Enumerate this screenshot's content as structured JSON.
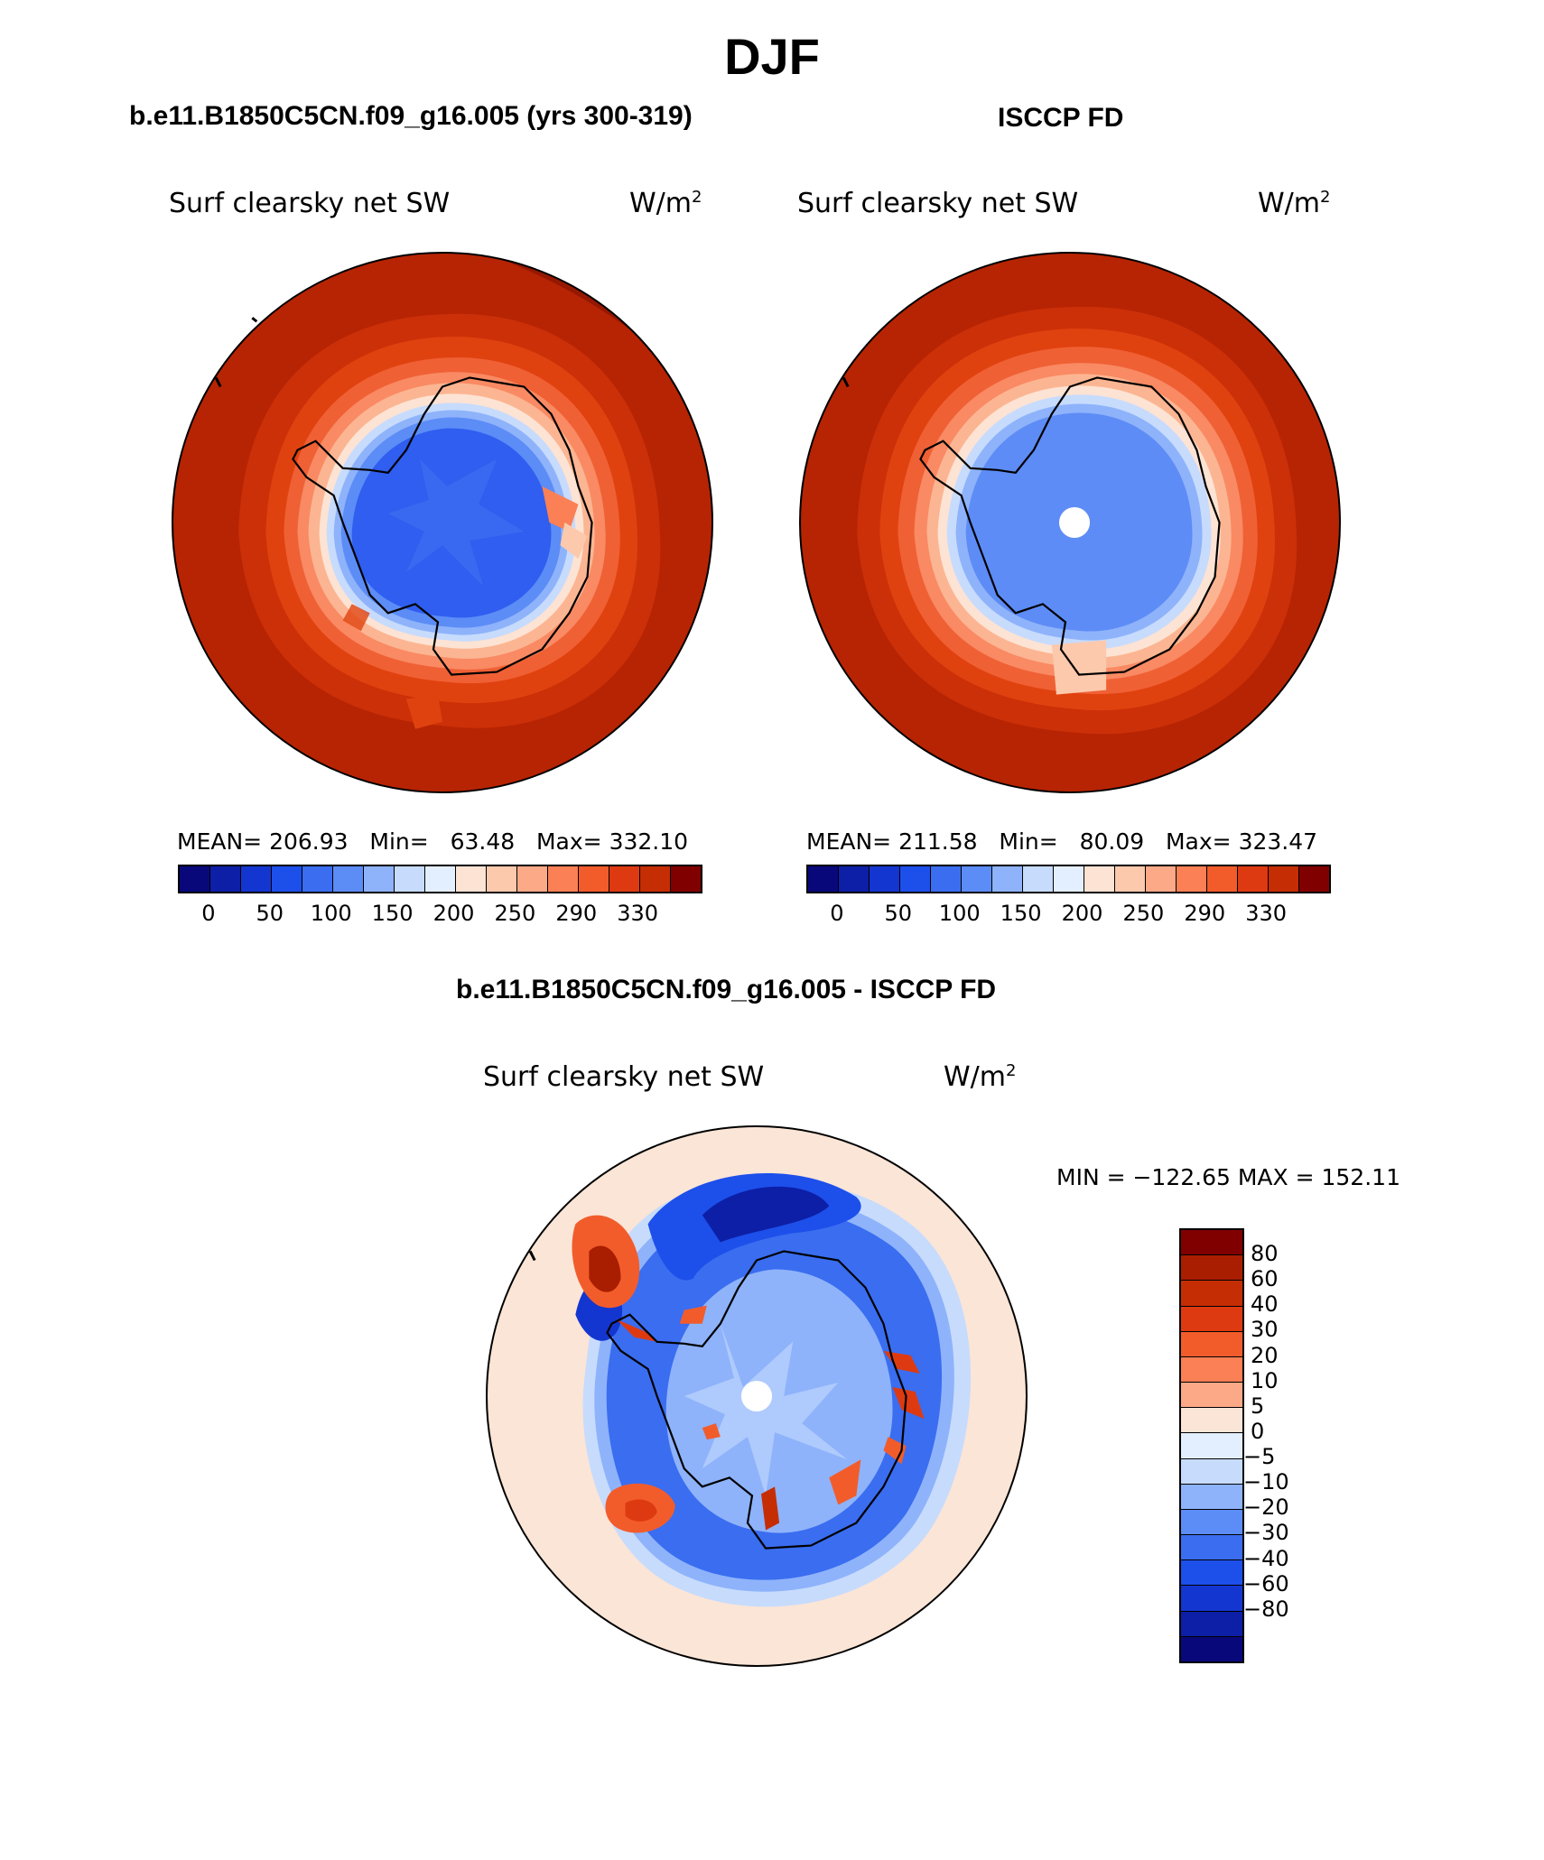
{
  "figure": {
    "title": "DJF"
  },
  "colors": {
    "warm": [
      "#fbe5d6",
      "#fcc9ad",
      "#fca987",
      "#fb8055",
      "#f25c2b",
      "#de3a12",
      "#c52d05",
      "#a91e00",
      "#800000"
    ],
    "cool": [
      "#08087a",
      "#0c1fa6",
      "#1436d0",
      "#1d4fea",
      "#3a6df0",
      "#5c8cf6",
      "#8eb3fb",
      "#c7dbfd",
      "#e3efff"
    ],
    "coast": "#000000",
    "pole_hole": "#ffffff"
  },
  "panels": {
    "model": {
      "header": "b.e11.B1850C5CN.f09_g16.005 (yrs 300-319)",
      "variable": "Surf clearsky net SW",
      "units": "W/m",
      "units_exp": "2",
      "stats": {
        "mean_label": "MEAN=",
        "mean": "206.93",
        "min_label": "Min=",
        "min": "63.48",
        "max_label": "Max=",
        "max": "332.10"
      },
      "colorbar_ticks": [
        "0",
        "50",
        "100",
        "150",
        "200",
        "250",
        "290",
        "330"
      ]
    },
    "obs": {
      "header": "ISCCP FD",
      "variable": "Surf clearsky net SW",
      "units": "W/m",
      "units_exp": "2",
      "stats": {
        "mean_label": "MEAN=",
        "mean": "211.58",
        "min_label": "Min=",
        "min": "80.09",
        "max_label": "Max=",
        "max": "323.47"
      },
      "colorbar_ticks": [
        "0",
        "50",
        "100",
        "150",
        "200",
        "250",
        "290",
        "330"
      ]
    },
    "diff": {
      "header": "b.e11.B1850C5CN.f09_g16.005 - ISCCP FD",
      "variable": "Surf clearsky net SW",
      "units": "W/m",
      "units_exp": "2",
      "minmax": "MIN = −122.65 MAX = 152.11",
      "colorbar_ticks": [
        "80",
        "60",
        "40",
        "30",
        "20",
        "10",
        "5",
        "0",
        "−5",
        "−10",
        "−20",
        "−30",
        "−40",
        "−60",
        "−80"
      ]
    }
  }
}
